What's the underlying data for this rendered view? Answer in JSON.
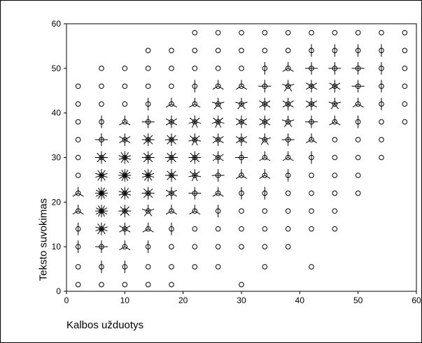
{
  "chart_data": {
    "type": "scatter",
    "subtype": "sunflower",
    "xlabel": "Kalbos užduotys",
    "ylabel": "Teksto suvokimas",
    "xlim": [
      0,
      60
    ],
    "ylim": [
      0,
      60
    ],
    "xticks": [
      0,
      10,
      20,
      30,
      40,
      50,
      60
    ],
    "yticks": [
      0,
      10,
      20,
      30,
      40,
      50,
      60
    ],
    "grid": false,
    "points": [
      {
        "x": 2,
        "y": 1.5,
        "n": 1
      },
      {
        "x": 6,
        "y": 1.5,
        "n": 1
      },
      {
        "x": 10,
        "y": 1.5,
        "n": 1
      },
      {
        "x": 14,
        "y": 1.5,
        "n": 1
      },
      {
        "x": 18,
        "y": 1.5,
        "n": 1
      },
      {
        "x": 30,
        "y": 1.5,
        "n": 1
      },
      {
        "x": 2,
        "y": 5.5,
        "n": 1
      },
      {
        "x": 6,
        "y": 5.5,
        "n": 2
      },
      {
        "x": 10,
        "y": 5.5,
        "n": 2
      },
      {
        "x": 14,
        "y": 5.5,
        "n": 1
      },
      {
        "x": 18,
        "y": 5.5,
        "n": 1
      },
      {
        "x": 22,
        "y": 5.5,
        "n": 1
      },
      {
        "x": 26,
        "y": 5.5,
        "n": 1
      },
      {
        "x": 34,
        "y": 5.5,
        "n": 1
      },
      {
        "x": 42,
        "y": 5.5,
        "n": 1
      },
      {
        "x": 2,
        "y": 10,
        "n": 2
      },
      {
        "x": 6,
        "y": 10,
        "n": 4
      },
      {
        "x": 10,
        "y": 10,
        "n": 3
      },
      {
        "x": 14,
        "y": 10,
        "n": 2
      },
      {
        "x": 18,
        "y": 10,
        "n": 1
      },
      {
        "x": 22,
        "y": 10,
        "n": 1
      },
      {
        "x": 26,
        "y": 10,
        "n": 1
      },
      {
        "x": 30,
        "y": 10,
        "n": 1
      },
      {
        "x": 34,
        "y": 10,
        "n": 1
      },
      {
        "x": 38,
        "y": 10,
        "n": 1
      },
      {
        "x": 2,
        "y": 14,
        "n": 2
      },
      {
        "x": 6,
        "y": 14,
        "n": 10
      },
      {
        "x": 10,
        "y": 14,
        "n": 6
      },
      {
        "x": 14,
        "y": 14,
        "n": 3
      },
      {
        "x": 18,
        "y": 14,
        "n": 2
      },
      {
        "x": 22,
        "y": 14,
        "n": 1
      },
      {
        "x": 26,
        "y": 14,
        "n": 1
      },
      {
        "x": 30,
        "y": 14,
        "n": 1
      },
      {
        "x": 34,
        "y": 14,
        "n": 1
      },
      {
        "x": 38,
        "y": 14,
        "n": 1
      },
      {
        "x": 42,
        "y": 14,
        "n": 1
      },
      {
        "x": 46,
        "y": 14,
        "n": 1
      },
      {
        "x": 2,
        "y": 18,
        "n": 3
      },
      {
        "x": 6,
        "y": 18,
        "n": 12
      },
      {
        "x": 10,
        "y": 18,
        "n": 8
      },
      {
        "x": 14,
        "y": 18,
        "n": 5
      },
      {
        "x": 18,
        "y": 18,
        "n": 3
      },
      {
        "x": 22,
        "y": 18,
        "n": 3
      },
      {
        "x": 26,
        "y": 18,
        "n": 2
      },
      {
        "x": 30,
        "y": 18,
        "n": 1
      },
      {
        "x": 34,
        "y": 18,
        "n": 1
      },
      {
        "x": 38,
        "y": 18,
        "n": 1
      },
      {
        "x": 42,
        "y": 18,
        "n": 1
      },
      {
        "x": 46,
        "y": 18,
        "n": 1
      },
      {
        "x": 2,
        "y": 22,
        "n": 3
      },
      {
        "x": 6,
        "y": 22,
        "n": 12
      },
      {
        "x": 10,
        "y": 22,
        "n": 10
      },
      {
        "x": 14,
        "y": 22,
        "n": 8
      },
      {
        "x": 18,
        "y": 22,
        "n": 6
      },
      {
        "x": 22,
        "y": 22,
        "n": 4
      },
      {
        "x": 26,
        "y": 22,
        "n": 3
      },
      {
        "x": 30,
        "y": 22,
        "n": 2
      },
      {
        "x": 34,
        "y": 22,
        "n": 2
      },
      {
        "x": 38,
        "y": 22,
        "n": 1
      },
      {
        "x": 42,
        "y": 22,
        "n": 1
      },
      {
        "x": 46,
        "y": 22,
        "n": 1
      },
      {
        "x": 50,
        "y": 22,
        "n": 1
      },
      {
        "x": 2,
        "y": 26,
        "n": 1
      },
      {
        "x": 6,
        "y": 26,
        "n": 10
      },
      {
        "x": 10,
        "y": 26,
        "n": 12
      },
      {
        "x": 14,
        "y": 26,
        "n": 10
      },
      {
        "x": 18,
        "y": 26,
        "n": 8
      },
      {
        "x": 22,
        "y": 26,
        "n": 7
      },
      {
        "x": 26,
        "y": 26,
        "n": 4
      },
      {
        "x": 30,
        "y": 26,
        "n": 3
      },
      {
        "x": 34,
        "y": 26,
        "n": 3
      },
      {
        "x": 38,
        "y": 26,
        "n": 2
      },
      {
        "x": 42,
        "y": 26,
        "n": 1
      },
      {
        "x": 46,
        "y": 26,
        "n": 1
      },
      {
        "x": 50,
        "y": 26,
        "n": 1
      },
      {
        "x": 2,
        "y": 30,
        "n": 1
      },
      {
        "x": 6,
        "y": 30,
        "n": 8
      },
      {
        "x": 10,
        "y": 30,
        "n": 10
      },
      {
        "x": 14,
        "y": 30,
        "n": 8
      },
      {
        "x": 18,
        "y": 30,
        "n": 8
      },
      {
        "x": 22,
        "y": 30,
        "n": 8
      },
      {
        "x": 26,
        "y": 30,
        "n": 6
      },
      {
        "x": 30,
        "y": 30,
        "n": 4
      },
      {
        "x": 34,
        "y": 30,
        "n": 3
      },
      {
        "x": 38,
        "y": 30,
        "n": 3
      },
      {
        "x": 42,
        "y": 30,
        "n": 2
      },
      {
        "x": 46,
        "y": 30,
        "n": 1
      },
      {
        "x": 50,
        "y": 30,
        "n": 1
      },
      {
        "x": 54,
        "y": 30,
        "n": 1
      },
      {
        "x": 2,
        "y": 34,
        "n": 1
      },
      {
        "x": 6,
        "y": 34,
        "n": 4
      },
      {
        "x": 10,
        "y": 34,
        "n": 6
      },
      {
        "x": 14,
        "y": 34,
        "n": 8
      },
      {
        "x": 18,
        "y": 34,
        "n": 8
      },
      {
        "x": 22,
        "y": 34,
        "n": 7
      },
      {
        "x": 26,
        "y": 34,
        "n": 6
      },
      {
        "x": 30,
        "y": 34,
        "n": 6
      },
      {
        "x": 34,
        "y": 34,
        "n": 5
      },
      {
        "x": 38,
        "y": 34,
        "n": 4
      },
      {
        "x": 42,
        "y": 34,
        "n": 3
      },
      {
        "x": 46,
        "y": 34,
        "n": 1
      },
      {
        "x": 50,
        "y": 34,
        "n": 1
      },
      {
        "x": 54,
        "y": 34,
        "n": 1
      },
      {
        "x": 2,
        "y": 38,
        "n": 1
      },
      {
        "x": 6,
        "y": 38,
        "n": 2
      },
      {
        "x": 10,
        "y": 38,
        "n": 3
      },
      {
        "x": 14,
        "y": 38,
        "n": 4
      },
      {
        "x": 18,
        "y": 38,
        "n": 6
      },
      {
        "x": 22,
        "y": 38,
        "n": 7
      },
      {
        "x": 26,
        "y": 38,
        "n": 7
      },
      {
        "x": 30,
        "y": 38,
        "n": 6
      },
      {
        "x": 34,
        "y": 38,
        "n": 6
      },
      {
        "x": 38,
        "y": 38,
        "n": 5
      },
      {
        "x": 42,
        "y": 38,
        "n": 4
      },
      {
        "x": 46,
        "y": 38,
        "n": 3
      },
      {
        "x": 50,
        "y": 38,
        "n": 2
      },
      {
        "x": 54,
        "y": 38,
        "n": 1
      },
      {
        "x": 58,
        "y": 38,
        "n": 1
      },
      {
        "x": 2,
        "y": 42,
        "n": 1
      },
      {
        "x": 6,
        "y": 42,
        "n": 1
      },
      {
        "x": 10,
        "y": 42,
        "n": 1
      },
      {
        "x": 14,
        "y": 42,
        "n": 2
      },
      {
        "x": 18,
        "y": 42,
        "n": 3
      },
      {
        "x": 22,
        "y": 42,
        "n": 3
      },
      {
        "x": 26,
        "y": 42,
        "n": 5
      },
      {
        "x": 30,
        "y": 42,
        "n": 5
      },
      {
        "x": 34,
        "y": 42,
        "n": 6
      },
      {
        "x": 38,
        "y": 42,
        "n": 6
      },
      {
        "x": 42,
        "y": 42,
        "n": 6
      },
      {
        "x": 46,
        "y": 42,
        "n": 5
      },
      {
        "x": 50,
        "y": 42,
        "n": 3
      },
      {
        "x": 54,
        "y": 42,
        "n": 2
      },
      {
        "x": 58,
        "y": 42,
        "n": 1
      },
      {
        "x": 2,
        "y": 46,
        "n": 1
      },
      {
        "x": 6,
        "y": 46,
        "n": 1
      },
      {
        "x": 10,
        "y": 46,
        "n": 1
      },
      {
        "x": 14,
        "y": 46,
        "n": 1
      },
      {
        "x": 18,
        "y": 46,
        "n": 1
      },
      {
        "x": 22,
        "y": 46,
        "n": 2
      },
      {
        "x": 26,
        "y": 46,
        "n": 3
      },
      {
        "x": 30,
        "y": 46,
        "n": 3
      },
      {
        "x": 34,
        "y": 46,
        "n": 4
      },
      {
        "x": 38,
        "y": 46,
        "n": 5
      },
      {
        "x": 42,
        "y": 46,
        "n": 6
      },
      {
        "x": 46,
        "y": 46,
        "n": 6
      },
      {
        "x": 50,
        "y": 46,
        "n": 4
      },
      {
        "x": 54,
        "y": 46,
        "n": 2
      },
      {
        "x": 58,
        "y": 46,
        "n": 1
      },
      {
        "x": 6,
        "y": 50,
        "n": 1
      },
      {
        "x": 10,
        "y": 50,
        "n": 1
      },
      {
        "x": 14,
        "y": 50,
        "n": 1
      },
      {
        "x": 18,
        "y": 50,
        "n": 1
      },
      {
        "x": 22,
        "y": 50,
        "n": 1
      },
      {
        "x": 26,
        "y": 50,
        "n": 1
      },
      {
        "x": 30,
        "y": 50,
        "n": 1
      },
      {
        "x": 34,
        "y": 50,
        "n": 2
      },
      {
        "x": 38,
        "y": 50,
        "n": 3
      },
      {
        "x": 42,
        "y": 50,
        "n": 4
      },
      {
        "x": 46,
        "y": 50,
        "n": 4
      },
      {
        "x": 50,
        "y": 50,
        "n": 4
      },
      {
        "x": 54,
        "y": 50,
        "n": 2
      },
      {
        "x": 58,
        "y": 50,
        "n": 1
      },
      {
        "x": 14,
        "y": 54,
        "n": 1
      },
      {
        "x": 18,
        "y": 54,
        "n": 1
      },
      {
        "x": 22,
        "y": 54,
        "n": 1
      },
      {
        "x": 26,
        "y": 54,
        "n": 1
      },
      {
        "x": 30,
        "y": 54,
        "n": 1
      },
      {
        "x": 34,
        "y": 54,
        "n": 1
      },
      {
        "x": 38,
        "y": 54,
        "n": 1
      },
      {
        "x": 42,
        "y": 54,
        "n": 2
      },
      {
        "x": 46,
        "y": 54,
        "n": 2
      },
      {
        "x": 50,
        "y": 54,
        "n": 2
      },
      {
        "x": 54,
        "y": 54,
        "n": 2
      },
      {
        "x": 58,
        "y": 54,
        "n": 1
      },
      {
        "x": 22,
        "y": 58,
        "n": 1
      },
      {
        "x": 26,
        "y": 58,
        "n": 1
      },
      {
        "x": 30,
        "y": 58,
        "n": 1
      },
      {
        "x": 34,
        "y": 58,
        "n": 1
      },
      {
        "x": 38,
        "y": 58,
        "n": 1
      },
      {
        "x": 42,
        "y": 58,
        "n": 1
      },
      {
        "x": 46,
        "y": 58,
        "n": 1
      },
      {
        "x": 50,
        "y": 58,
        "n": 1
      },
      {
        "x": 54,
        "y": 58,
        "n": 1
      },
      {
        "x": 58,
        "y": 58,
        "n": 1
      }
    ]
  }
}
